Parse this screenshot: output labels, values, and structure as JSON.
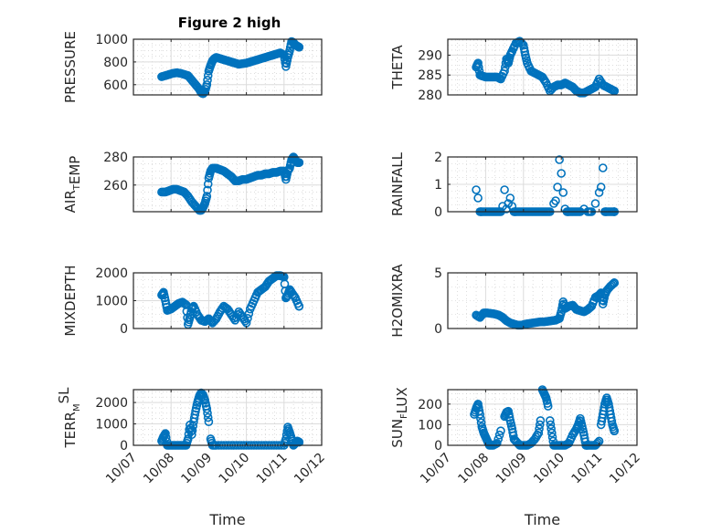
{
  "figure": {
    "title": "Figure 2 high",
    "xlabel": "Time"
  },
  "chart_data": [
    {
      "type": "scatter",
      "id": "pressure",
      "title": "Figure 2 high",
      "ylabel_parts": [
        [
          "PRESSURE",
          ""
        ]
      ],
      "ylim": [
        510,
        1000
      ],
      "yticks": [
        600,
        800,
        1000
      ],
      "xlim": [
        0,
        5
      ],
      "xticks": [
        "10/07",
        "10/08",
        "10/09",
        "10/10",
        "10/11",
        "10/12"
      ],
      "show_xticklabels": false,
      "grid": true,
      "marker_color": "#0072BD",
      "x": [
        0.75,
        0.85,
        0.95,
        1.05,
        1.15,
        1.25,
        1.35,
        1.45,
        1.55,
        1.65,
        1.75,
        1.8,
        1.85,
        1.9,
        1.95,
        2.0,
        2.05,
        2.1,
        2.15,
        2.2,
        2.3,
        2.4,
        2.5,
        2.6,
        2.7,
        2.8,
        2.9,
        3.0,
        3.1,
        3.2,
        3.3,
        3.4,
        3.5,
        3.6,
        3.7,
        3.8,
        3.9,
        4.0,
        4.05,
        4.1,
        4.15,
        4.2,
        4.25,
        4.3,
        4.35,
        4.4
      ],
      "y": [
        670,
        680,
        690,
        700,
        705,
        700,
        690,
        680,
        640,
        600,
        560,
        530,
        520,
        540,
        600,
        720,
        770,
        810,
        830,
        840,
        830,
        820,
        810,
        800,
        790,
        780,
        785,
        790,
        800,
        810,
        820,
        830,
        840,
        850,
        860,
        870,
        880,
        860,
        760,
        840,
        900,
        980,
        970,
        950,
        940,
        930
      ]
    },
    {
      "type": "scatter",
      "id": "theta",
      "ylabel_parts": [
        [
          "THETA",
          ""
        ]
      ],
      "ylim": [
        280,
        294
      ],
      "yticks": [
        280,
        285,
        290
      ],
      "xlim": [
        0,
        5
      ],
      "xticks": [
        "10/07",
        "10/08",
        "10/09",
        "10/10",
        "10/11",
        "10/12"
      ],
      "show_xticklabels": false,
      "grid": true,
      "marker_color": "#0072BD",
      "x": [
        0.75,
        0.8,
        0.85,
        0.9,
        1.0,
        1.1,
        1.2,
        1.3,
        1.4,
        1.5,
        1.55,
        1.6,
        1.65,
        1.7,
        1.8,
        1.9,
        2.0,
        2.05,
        2.1,
        2.2,
        2.3,
        2.4,
        2.5,
        2.6,
        2.7,
        2.8,
        2.9,
        3.0,
        3.1,
        3.2,
        3.3,
        3.4,
        3.5,
        3.6,
        3.7,
        3.8,
        3.9,
        4.0,
        4.1,
        4.2,
        4.3,
        4.4
      ],
      "y": [
        287,
        288,
        285,
        284.8,
        284.5,
        284.5,
        284.5,
        284.5,
        284,
        286,
        289,
        288,
        290,
        291,
        293,
        293.5,
        292.5,
        290,
        288,
        286,
        285.5,
        285,
        284.5,
        283,
        281,
        282,
        282.5,
        282.5,
        283,
        282.5,
        282,
        281,
        280.5,
        280.5,
        281,
        281.5,
        282,
        284,
        282.5,
        282,
        281.5,
        281
      ]
    },
    {
      "type": "scatter",
      "id": "air_temp",
      "ylabel_parts": [
        [
          "AIR",
          ""
        ],
        [
          "T",
          "sub"
        ],
        [
          "EMP",
          ""
        ]
      ],
      "ylim": [
        241,
        280
      ],
      "yticks": [
        260,
        280
      ],
      "xlim": [
        0,
        5
      ],
      "xticks": [
        "10/07",
        "10/08",
        "10/09",
        "10/10",
        "10/11",
        "10/12"
      ],
      "show_xticklabels": false,
      "grid": true,
      "marker_color": "#0072BD",
      "x": [
        0.75,
        0.85,
        0.95,
        1.05,
        1.15,
        1.25,
        1.35,
        1.45,
        1.55,
        1.65,
        1.75,
        1.8,
        1.85,
        1.9,
        1.95,
        2.0,
        2.05,
        2.1,
        2.2,
        2.3,
        2.4,
        2.5,
        2.6,
        2.7,
        2.8,
        2.9,
        3.0,
        3.1,
        3.2,
        3.3,
        3.4,
        3.5,
        3.6,
        3.7,
        3.8,
        3.9,
        4.0,
        4.05,
        4.1,
        4.15,
        4.2,
        4.25,
        4.3,
        4.35,
        4.4
      ],
      "y": [
        255,
        255,
        256,
        257,
        257,
        256,
        255,
        252,
        248,
        245,
        242,
        242,
        244,
        247,
        252,
        265,
        270,
        272,
        272,
        271,
        270,
        268,
        266,
        263,
        263,
        264,
        264,
        265,
        266,
        267,
        267,
        268,
        268,
        269,
        269,
        270,
        270,
        264,
        270,
        272,
        278,
        280,
        278,
        276,
        276
      ]
    },
    {
      "type": "scatter",
      "id": "rainfall",
      "ylabel_parts": [
        [
          "RAINFALL",
          ""
        ]
      ],
      "ylim": [
        0,
        2
      ],
      "yticks": [
        0,
        1,
        2
      ],
      "xlim": [
        0,
        5
      ],
      "xticks": [
        "10/07",
        "10/08",
        "10/09",
        "10/10",
        "10/11",
        "10/12"
      ],
      "show_xticklabels": false,
      "grid": true,
      "marker_color": "#0072BD",
      "x": [
        0.75,
        0.8,
        0.85,
        0.9,
        1.0,
        1.1,
        1.2,
        1.3,
        1.4,
        1.45,
        1.5,
        1.55,
        1.6,
        1.65,
        1.7,
        1.75,
        1.8,
        1.9,
        2.0,
        2.1,
        2.2,
        2.3,
        2.4,
        2.5,
        2.6,
        2.7,
        2.8,
        2.85,
        2.9,
        2.95,
        3.0,
        3.05,
        3.1,
        3.15,
        3.2,
        3.3,
        3.4,
        3.5,
        3.6,
        3.7,
        3.8,
        3.9,
        4.0,
        4.05,
        4.1,
        4.15,
        4.2,
        4.3,
        4.4
      ],
      "y": [
        0.8,
        0.5,
        0,
        0,
        0,
        0,
        0,
        0,
        0,
        0.2,
        0.8,
        0.1,
        0.3,
        0.5,
        0.2,
        0,
        0,
        0,
        0,
        0,
        0,
        0,
        0,
        0,
        0,
        0,
        0.3,
        0.4,
        0.9,
        1.9,
        1.4,
        0.7,
        0.1,
        0,
        0,
        0,
        0,
        0,
        0.1,
        0,
        0,
        0.3,
        0.7,
        0.9,
        1.6,
        0,
        0,
        0,
        0
      ]
    },
    {
      "type": "scatter",
      "id": "mixdepth",
      "ylabel_parts": [
        [
          "MIXDEPTH",
          ""
        ]
      ],
      "ylim": [
        0,
        2000
      ],
      "yticks": [
        0,
        1000,
        2000
      ],
      "xlim": [
        0,
        5
      ],
      "xticks": [
        "10/07",
        "10/08",
        "10/09",
        "10/10",
        "10/11",
        "10/12"
      ],
      "show_xticklabels": false,
      "grid": true,
      "marker_color": "#0072BD",
      "x": [
        0.75,
        0.8,
        0.85,
        0.9,
        1.0,
        1.1,
        1.2,
        1.3,
        1.4,
        1.45,
        1.5,
        1.55,
        1.6,
        1.7,
        1.8,
        1.9,
        2.0,
        2.1,
        2.2,
        2.3,
        2.4,
        2.5,
        2.6,
        2.7,
        2.8,
        2.9,
        3.0,
        3.1,
        3.2,
        3.3,
        3.4,
        3.5,
        3.6,
        3.7,
        3.8,
        3.9,
        4.0,
        4.05,
        4.1,
        4.15,
        4.2,
        4.3,
        4.4
      ],
      "y": [
        1200,
        1300,
        1000,
        650,
        700,
        800,
        900,
        950,
        850,
        150,
        400,
        700,
        800,
        500,
        300,
        250,
        350,
        200,
        350,
        600,
        800,
        700,
        500,
        300,
        600,
        400,
        200,
        700,
        1000,
        1300,
        1400,
        1500,
        1700,
        1800,
        1900,
        1900,
        1850,
        1100,
        1200,
        1400,
        1300,
        1100,
        800
      ]
    },
    {
      "type": "scatter",
      "id": "h2omixra",
      "ylabel_parts": [
        [
          "H2OMIXRA",
          ""
        ]
      ],
      "ylim": [
        0,
        5
      ],
      "yticks": [
        0,
        5
      ],
      "xlim": [
        0,
        5
      ],
      "xticks": [
        "10/07",
        "10/08",
        "10/09",
        "10/10",
        "10/11",
        "10/12"
      ],
      "show_xticklabels": false,
      "grid": true,
      "marker_color": "#0072BD",
      "x": [
        0.75,
        0.85,
        0.95,
        1.05,
        1.15,
        1.25,
        1.35,
        1.45,
        1.55,
        1.65,
        1.75,
        1.85,
        1.95,
        2.05,
        2.15,
        2.25,
        2.35,
        2.45,
        2.55,
        2.65,
        2.75,
        2.85,
        2.95,
        3.0,
        3.05,
        3.1,
        3.2,
        3.3,
        3.4,
        3.5,
        3.6,
        3.7,
        3.8,
        3.9,
        4.0,
        4.05,
        4.1,
        4.15,
        4.2,
        4.3,
        4.4
      ],
      "y": [
        1.2,
        1.0,
        1.4,
        1.4,
        1.35,
        1.3,
        1.2,
        1.0,
        0.7,
        0.5,
        0.4,
        0.3,
        0.3,
        0.4,
        0.45,
        0.5,
        0.55,
        0.6,
        0.6,
        0.65,
        0.7,
        0.75,
        0.9,
        1.5,
        2.4,
        1.8,
        2.0,
        2.1,
        1.7,
        1.6,
        1.5,
        1.7,
        2.0,
        2.8,
        3.0,
        3.2,
        2.2,
        3.0,
        3.4,
        3.8,
        4.1
      ]
    },
    {
      "type": "scatter",
      "id": "terr_msl",
      "ylabel_parts": [
        [
          "TERR",
          ""
        ],
        [
          "M",
          "sub"
        ],
        [
          "SL",
          "sup"
        ]
      ],
      "ylim": [
        0,
        2600
      ],
      "yticks": [
        0,
        1000,
        2000
      ],
      "xlim": [
        0,
        5
      ],
      "xticks": [
        "10/07",
        "10/08",
        "10/09",
        "10/10",
        "10/11",
        "10/12"
      ],
      "show_xticklabels": true,
      "xlabel": "Time",
      "grid": true,
      "marker_color": "#0072BD",
      "x": [
        0.75,
        0.8,
        0.85,
        0.9,
        1.0,
        1.1,
        1.2,
        1.3,
        1.4,
        1.45,
        1.5,
        1.55,
        1.6,
        1.65,
        1.7,
        1.75,
        1.8,
        1.85,
        1.9,
        1.95,
        2.0,
        2.05,
        2.1,
        2.2,
        2.4,
        2.6,
        2.8,
        3.0,
        3.2,
        3.4,
        3.6,
        3.8,
        4.0,
        4.05,
        4.1,
        4.15,
        4.2,
        4.25,
        4.3,
        4.35,
        4.4
      ],
      "y": [
        200,
        400,
        550,
        0,
        0,
        0,
        0,
        0,
        0,
        300,
        950,
        500,
        1100,
        1600,
        2000,
        2300,
        2450,
        2350,
        2100,
        1700,
        1100,
        300,
        0,
        0,
        0,
        0,
        0,
        0,
        0,
        0,
        0,
        0,
        0,
        300,
        850,
        600,
        300,
        0,
        100,
        200,
        150
      ]
    },
    {
      "type": "scatter",
      "id": "sun_flux",
      "ylabel_parts": [
        [
          "SUN",
          ""
        ],
        [
          "F",
          "sub"
        ],
        [
          "LUX",
          ""
        ]
      ],
      "ylim": [
        0,
        270
      ],
      "yticks": [
        0,
        100,
        200
      ],
      "xlim": [
        0,
        5
      ],
      "xticks": [
        "10/07",
        "10/08",
        "10/09",
        "10/10",
        "10/11",
        "10/12"
      ],
      "show_xticklabels": true,
      "xlabel": "Time",
      "grid": true,
      "marker_color": "#0072BD",
      "x": [
        0.7,
        0.75,
        0.8,
        0.85,
        0.9,
        0.95,
        1.0,
        1.05,
        1.1,
        1.2,
        1.3,
        1.4,
        1.5,
        1.55,
        1.6,
        1.65,
        1.7,
        1.75,
        1.8,
        1.9,
        2.0,
        2.1,
        2.2,
        2.3,
        2.4,
        2.45,
        2.5,
        2.55,
        2.6,
        2.65,
        2.7,
        2.75,
        2.8,
        2.9,
        3.0,
        3.1,
        3.2,
        3.3,
        3.4,
        3.45,
        3.5,
        3.55,
        3.6,
        3.65,
        3.7,
        3.8,
        3.9,
        4.0,
        4.05,
        4.1,
        4.15,
        4.2,
        4.25,
        4.3,
        4.35,
        4.4
      ],
      "y": [
        150,
        180,
        200,
        150,
        90,
        60,
        40,
        20,
        0,
        0,
        10,
        70,
        140,
        160,
        165,
        120,
        80,
        30,
        20,
        0,
        0,
        0,
        10,
        30,
        60,
        120,
        270,
        250,
        230,
        190,
        120,
        60,
        0,
        0,
        0,
        0,
        10,
        50,
        80,
        100,
        130,
        90,
        50,
        0,
        0,
        0,
        0,
        20,
        100,
        150,
        200,
        230,
        200,
        150,
        100,
        70
      ]
    }
  ]
}
